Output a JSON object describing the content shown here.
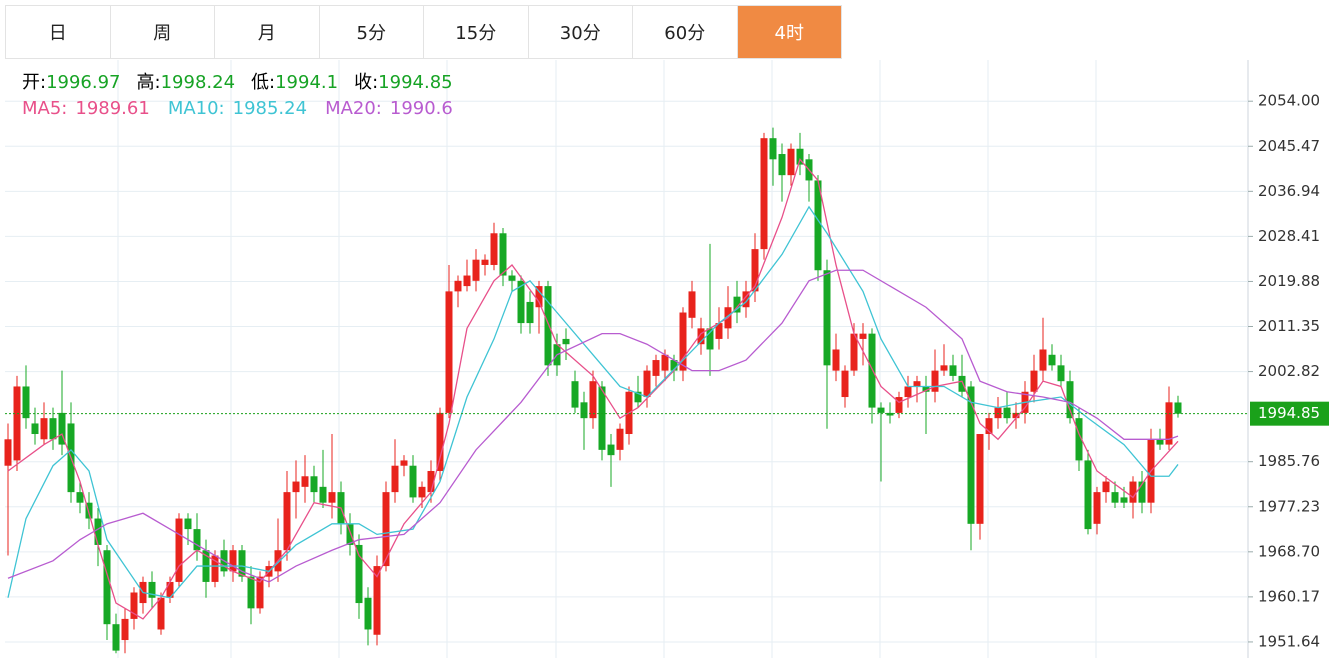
{
  "tabs": [
    "日",
    "周",
    "月",
    "5分",
    "15分",
    "30分",
    "60分",
    "4时"
  ],
  "active_tab": 7,
  "chart_data": {
    "type": "candlestick",
    "ylim": [
      1948.6,
      2061.8
    ],
    "yticks": [
      {
        "value": 2054,
        "label": "2054.00"
      },
      2045.47,
      2036.94,
      2028.41,
      2019.88,
      2011.35,
      2002.82,
      1985.76,
      1977.23,
      {
        "value": 1968.7,
        "label": "1968.70"
      },
      1960.17,
      1951.64
    ],
    "grid": true,
    "up_color": "#e8231c",
    "down_color": "#17a825",
    "last_price": 1994.85,
    "last_price_color": "#1aa11a",
    "ohlc_labels": [
      "开:",
      "高:",
      "低:",
      "收:"
    ],
    "open": [
      1985,
      1986,
      2000,
      1993,
      1990,
      1994,
      1995,
      1993,
      1980,
      1978,
      1975,
      1969,
      1955,
      1952,
      1956,
      1959,
      1963,
      1954,
      1960,
      1963,
      1975,
      1973,
      1969,
      1963,
      1969,
      1965,
      1969,
      1964,
      1958,
      1964,
      1965,
      1969,
      1980,
      1981,
      1983,
      1981,
      1978,
      1980,
      1974,
      1970,
      1960,
      1953,
      1966,
      1980,
      1985,
      1985,
      1979,
      1980,
      1984,
      1995,
      2018,
      2019,
      2020,
      2023,
      2023,
      2029,
      2021,
      2020,
      2016,
      2015,
      2019,
      2008,
      2009,
      2001,
      1997,
      1994,
      2000,
      1989,
      1988,
      1991,
      1999,
      1998,
      2002,
      2003,
      2005,
      2003,
      2013,
      2008,
      2011,
      2009,
      2011,
      2017,
      2015,
      2018,
      2026,
      2047,
      2044,
      2040,
      2045,
      2043,
      2039,
      2022,
      2003,
      1998,
      2003,
      2009,
      2010,
      1996,
      1995,
      1995,
      1998,
      2000,
      2000,
      1999,
      2003,
      2004,
      2002,
      2000,
      1974,
      1991,
      1994,
      1996,
      1994,
      1995,
      1999,
      2003,
      2006,
      2004,
      2001,
      1994,
      1986,
      1974,
      1980,
      1980,
      1979,
      1978,
      1982,
      1978,
      1990,
      1989,
      1996.97
    ],
    "high": [
      1993,
      2002,
      2004,
      1996,
      1997,
      1996,
      2003,
      1997,
      1982,
      1980,
      1977,
      1970,
      1957,
      1958,
      1962,
      1964,
      1965,
      1961,
      1964,
      1976,
      1976,
      1976,
      1971,
      1969,
      1971,
      1970,
      1970,
      1966,
      1965,
      1967,
      1975,
      1984,
      1986,
      1987,
      1985,
      1988,
      1991,
      1982,
      1976,
      1972,
      1962,
      1968,
      1982,
      1990,
      1987,
      1987,
      1982,
      1986,
      1996,
      2023,
      2021,
      2024,
      2026,
      2025,
      2031,
      2030,
      2022,
      2021,
      2018,
      2020,
      2020,
      2010,
      2011,
      2003,
      1999,
      2003,
      2001,
      1991,
      1993,
      2000,
      2002,
      2004,
      2006,
      2007,
      2006,
      2015,
      2020,
      2013,
      2027,
      2015,
      2019,
      2020,
      2020,
      2029,
      2048,
      2049,
      2046,
      2046,
      2048,
      2044,
      2040,
      2024,
      2010,
      2004,
      2012,
      2012,
      2011,
      1997,
      1997,
      1999,
      2002,
      2002,
      2002,
      2007,
      2008,
      2006,
      2006,
      2001,
      1991,
      1995,
      1998,
      1999,
      1997,
      2001,
      2006,
      2013,
      2008,
      2006,
      2003,
      1996,
      1988,
      1981,
      1983,
      1982,
      1981,
      1983,
      1984,
      1992,
      1992,
      2000,
      1998.24
    ],
    "low": [
      1968,
      1984,
      1992,
      1989,
      1989,
      1988,
      1987,
      1978,
      1976,
      1973,
      1966,
      1952,
      1949.5,
      1949.5,
      1954,
      1957,
      1958,
      1953,
      1959,
      1962,
      1970,
      1967,
      1960,
      1962,
      1964,
      1963,
      1963,
      1955,
      1957,
      1962,
      1963,
      1967,
      1975,
      1978,
      1978,
      1977,
      1975,
      1972,
      1968,
      1956,
      1951,
      1951,
      1965,
      1978,
      1983,
      1978,
      1977,
      1978,
      1982,
      1994,
      2015,
      2018,
      2018,
      2021,
      2022,
      2019,
      2018,
      2010,
      2010,
      2010,
      2002,
      2002,
      2005,
      1995,
      1988,
      1992,
      1986,
      1981,
      1986,
      1989,
      1996,
      1996,
      2000,
      2001,
      2001,
      2001,
      2011,
      2006,
      2002,
      2007,
      2009,
      2012,
      2013,
      2016,
      2024,
      2038,
      2035,
      2038,
      2040,
      2035,
      2020,
      1992,
      2001,
      1996,
      2002,
      2004,
      1993,
      1982,
      1993,
      1994,
      1996,
      1997,
      1991,
      1997,
      2002,
      2001,
      1998,
      1969,
      1971,
      1988,
      1992,
      1993,
      1992,
      1993,
      1997,
      2001,
      2003,
      2000,
      1993,
      1984,
      1972,
      1972,
      1978,
      1977,
      1977,
      1975,
      1976,
      1976,
      1988,
      1988,
      1994.1
    ],
    "close": [
      1990,
      2000,
      1994,
      1991,
      1994,
      1990,
      1989,
      1980,
      1978,
      1975,
      1970,
      1955,
      1950,
      1956,
      1961,
      1963,
      1960,
      1960,
      1963,
      1975,
      1973,
      1969,
      1963,
      1968,
      1965,
      1969,
      1964,
      1958,
      1964,
      1966,
      1969,
      1980,
      1982,
      1983,
      1980,
      1978,
      1980,
      1974,
      1970,
      1959,
      1954,
      1966,
      1980,
      1985,
      1986,
      1979,
      1981,
      1984,
      1995,
      2018,
      2020,
      2021,
      2024,
      2024,
      2029,
      2021,
      2020,
      2012,
      2012,
      2019,
      2004,
      2004,
      2008,
      1996,
      1994,
      2001,
      1988,
      1987,
      1992,
      1999,
      1997,
      2003,
      2005,
      2006,
      2003,
      2014,
      2018,
      2011,
      2007,
      2012,
      2015,
      2014,
      2018,
      2026,
      2047,
      2043,
      2040,
      2045,
      2042,
      2039,
      2022,
      2004,
      2007,
      2003,
      2010,
      2010,
      1996,
      1995,
      1994.5,
      1998,
      2000,
      2001,
      1999,
      2003,
      2004,
      2002,
      1999,
      1974,
      1991,
      1994,
      1996,
      1994,
      1995,
      1999,
      2003,
      2007,
      2004,
      2001,
      1994,
      1986,
      1973,
      1980,
      1982,
      1978,
      1978,
      1982,
      1978,
      1990,
      1989,
      1997,
      1994.85
    ],
    "ma": [
      {
        "name": "MA5:",
        "color": "#e8508a",
        "x": [
          0,
          4,
          6,
          8,
          10,
          12,
          15,
          17,
          19,
          21,
          25,
          28,
          31,
          34,
          37,
          39,
          41,
          44,
          47,
          49,
          51,
          54,
          56,
          59,
          61,
          65,
          68,
          70,
          74,
          77,
          80,
          83,
          86,
          88,
          90,
          92,
          94,
          97,
          99,
          103,
          106,
          108,
          110,
          113,
          115,
          117,
          119,
          121,
          125,
          127,
          130
        ],
        "values": [
          1984,
          1989,
          1991,
          1982,
          1970,
          1959,
          1956,
          1960,
          1966,
          1969,
          1965,
          1963,
          1969,
          1978,
          1977,
          1968,
          1964,
          1974,
          1980,
          1993,
          2011,
          2020,
          2023,
          2016,
          2008,
          2002,
          1994,
          1996,
          2003,
          2010,
          2013,
          2019,
          2032,
          2043,
          2039,
          2023,
          2010,
          2000,
          1997,
          2000,
          2001,
          1993,
          1990,
          1996,
          2001,
          2000,
          1991,
          1984,
          1979,
          1984,
          1989.61
        ]
      },
      {
        "name": "MA10:",
        "color": "#3fc4d4",
        "x": [
          0,
          2,
          5,
          7,
          9,
          11,
          15,
          18,
          21,
          26,
          29,
          32,
          36,
          39,
          41,
          45,
          48,
          51,
          54,
          56,
          58,
          61,
          65,
          68,
          71,
          75,
          79,
          82,
          86,
          89,
          91,
          95,
          97,
          100,
          104,
          107,
          110,
          113,
          117,
          120,
          124,
          127,
          129,
          130
        ],
        "values": [
          1960,
          1975,
          1985,
          1988,
          1984,
          1971,
          1961,
          1960,
          1966,
          1966,
          1965,
          1970,
          1974,
          1974,
          1972,
          1973,
          1982,
          1998,
          2009,
          2018,
          2020,
          2014,
          2006,
          2000,
          1998,
          2005,
          2012,
          2016,
          2025,
          2034,
          2029,
          2018,
          2009,
          2000,
          2000,
          1997,
          1996,
          1997,
          1998,
          1994,
          1989,
          1983,
          1983,
          1985.24
        ]
      },
      {
        "name": "MA20:",
        "color": "#b85cd0",
        "x": [
          0,
          5,
          8,
          11,
          15,
          18,
          21,
          26,
          29,
          32,
          36,
          39,
          44,
          48,
          52,
          57,
          61,
          66,
          68,
          71,
          76,
          79,
          82,
          86,
          89,
          92,
          95,
          98,
          102,
          106,
          108,
          111,
          115,
          118,
          121,
          124,
          127,
          129,
          130
        ],
        "values": [
          1963.7,
          1967,
          1971,
          1974,
          1976,
          1973,
          1970,
          1965,
          1963,
          1966,
          1969,
          1971,
          1972,
          1978,
          1988,
          1997,
          2006,
          2010,
          2010,
          2008,
          2003,
          2003,
          2005,
          2012,
          2020,
          2022,
          2022,
          2019,
          2015,
          2009,
          2001,
          1999,
          1998,
          1997,
          1994,
          1990,
          1990,
          1990,
          1990.6
        ]
      }
    ]
  }
}
